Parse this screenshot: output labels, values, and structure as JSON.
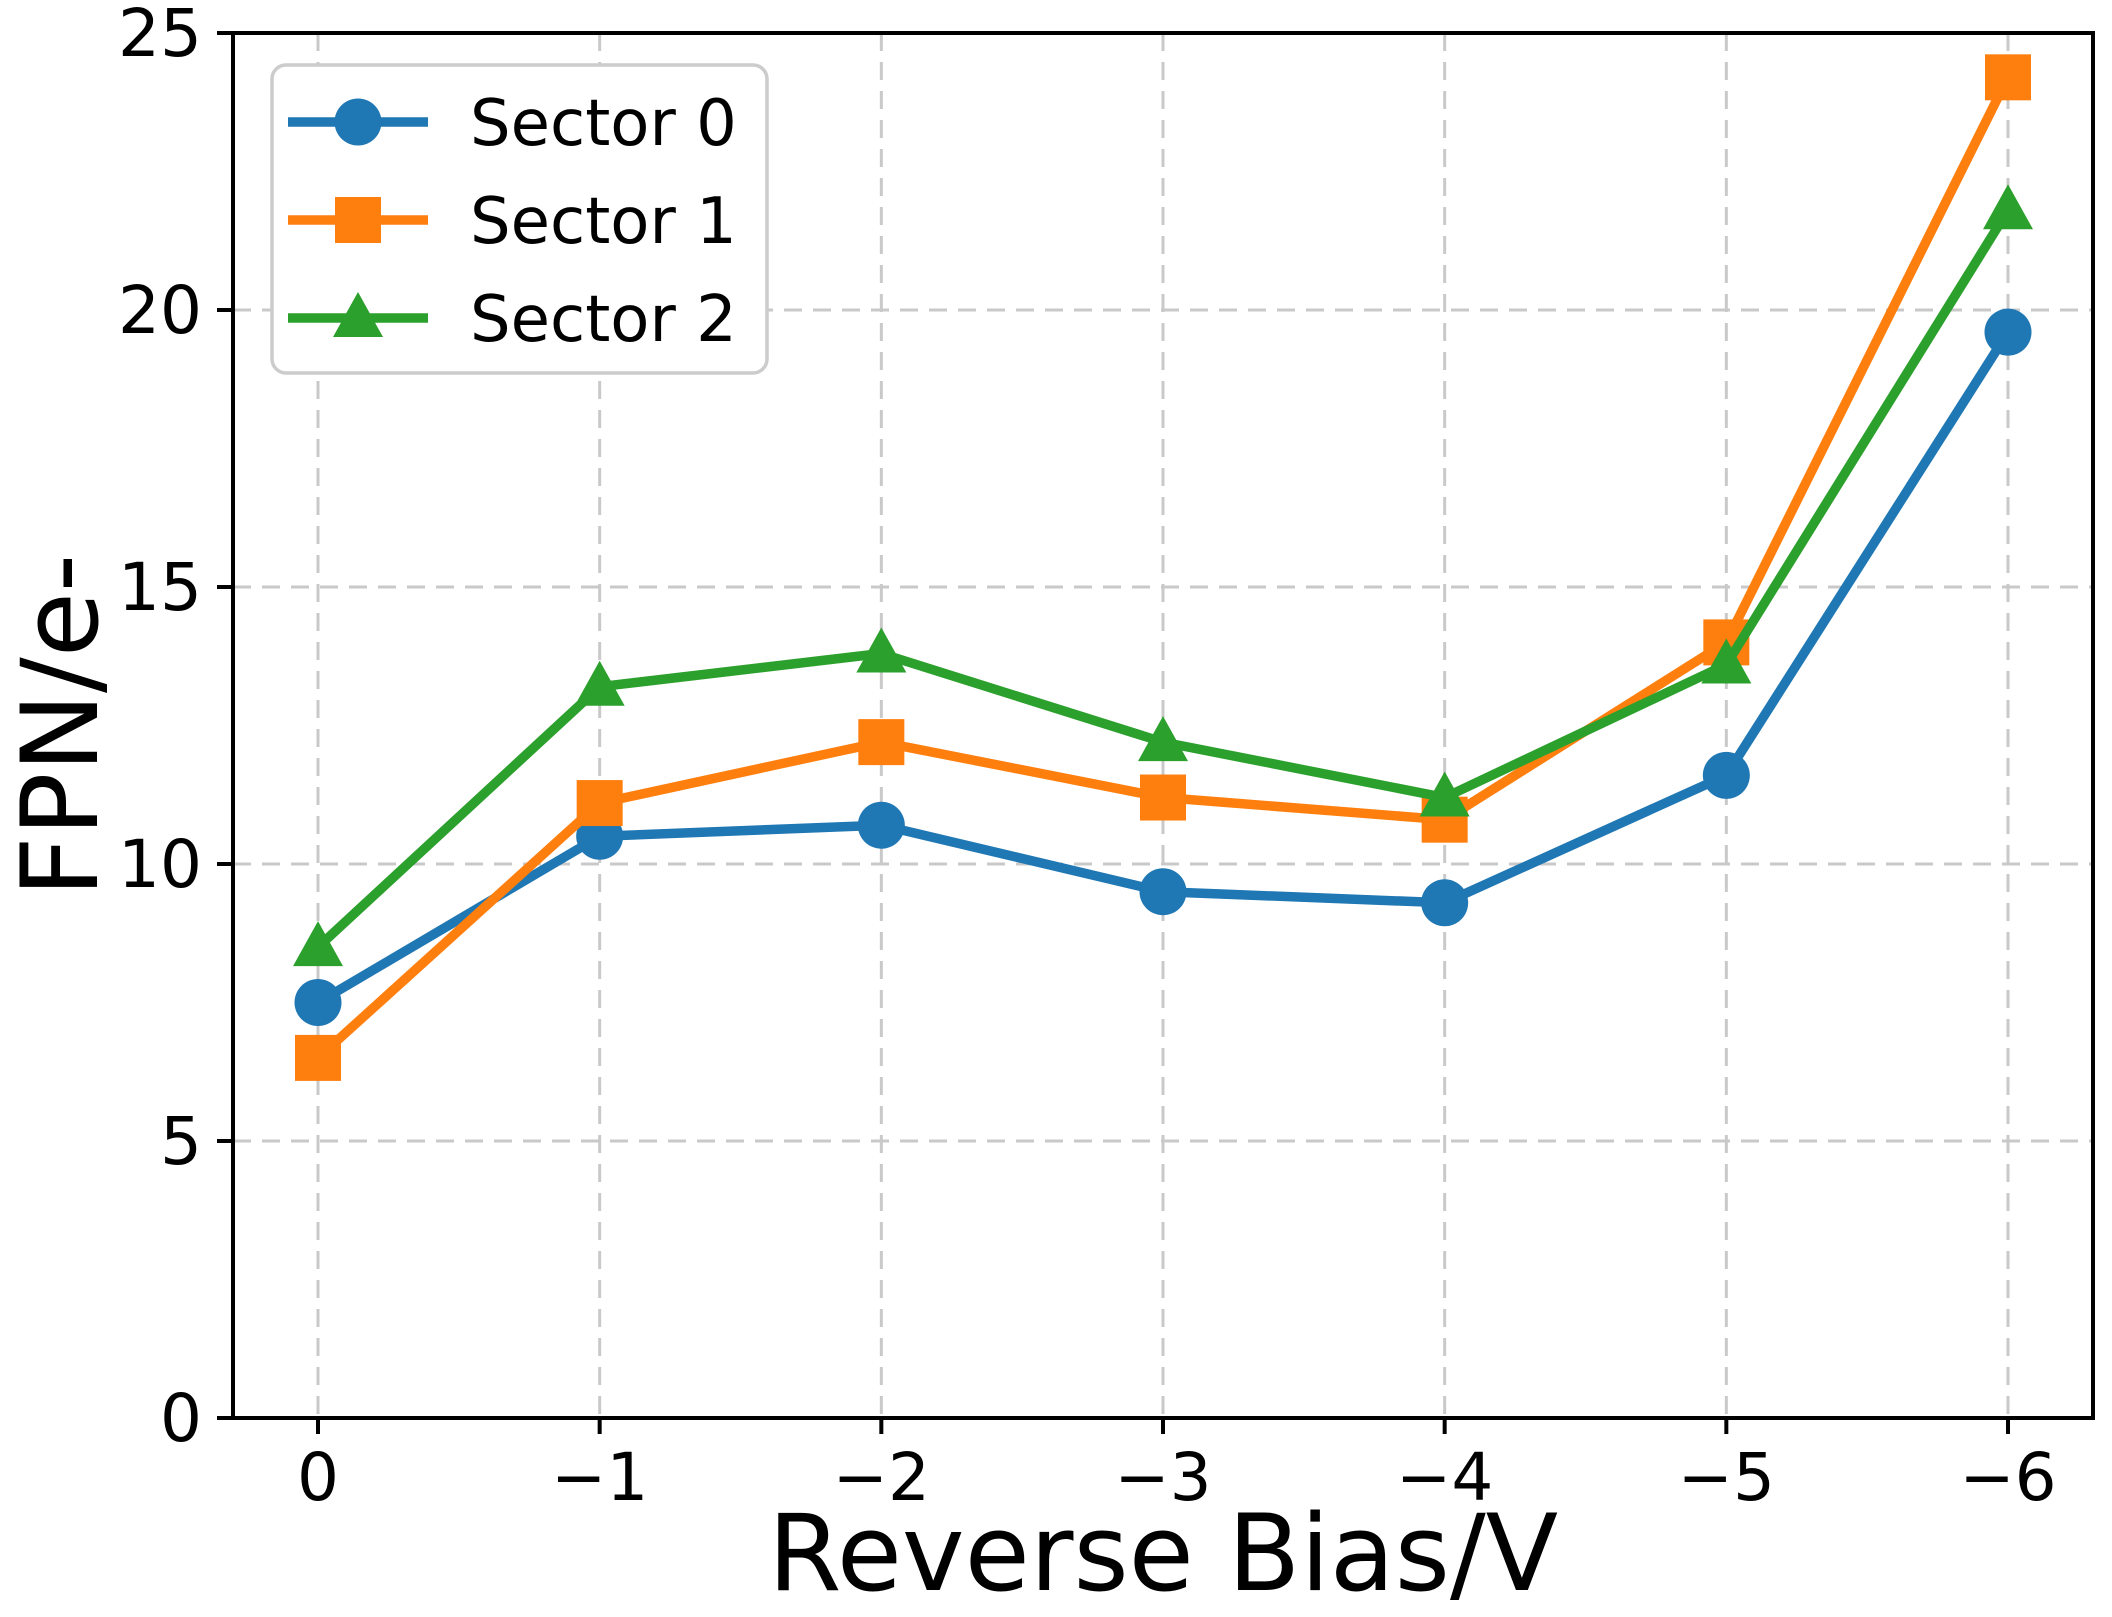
{
  "chart_data": {
    "type": "line",
    "title": "",
    "xlabel": "Reverse Bias/V",
    "ylabel": "FPN/e-",
    "x": [
      0,
      -1,
      -2,
      -3,
      -4,
      -5,
      -6
    ],
    "x_tick_labels": [
      "0",
      "−1",
      "−2",
      "−3",
      "−4",
      "−5",
      "−6"
    ],
    "y_ticks": [
      0,
      5,
      10,
      15,
      20,
      25
    ],
    "y_tick_labels": [
      "0",
      "5",
      "10",
      "15",
      "20",
      "25"
    ],
    "ylim": [
      0,
      25
    ],
    "grid": true,
    "grid_style": "dashed",
    "legend_position": "upper left",
    "series": [
      {
        "name": "Sector 0",
        "marker": "circle",
        "color": "#1f77b4",
        "values": [
          7.5,
          10.5,
          10.7,
          9.5,
          9.3,
          11.6,
          19.6
        ]
      },
      {
        "name": "Sector 1",
        "marker": "square",
        "color": "#ff7f0e",
        "values": [
          6.5,
          11.1,
          12.2,
          11.2,
          10.8,
          14.0,
          24.2
        ]
      },
      {
        "name": "Sector 2",
        "marker": "triangle",
        "color": "#2ca02c",
        "values": [
          8.5,
          13.2,
          13.8,
          12.2,
          11.2,
          13.6,
          21.8
        ]
      }
    ]
  }
}
